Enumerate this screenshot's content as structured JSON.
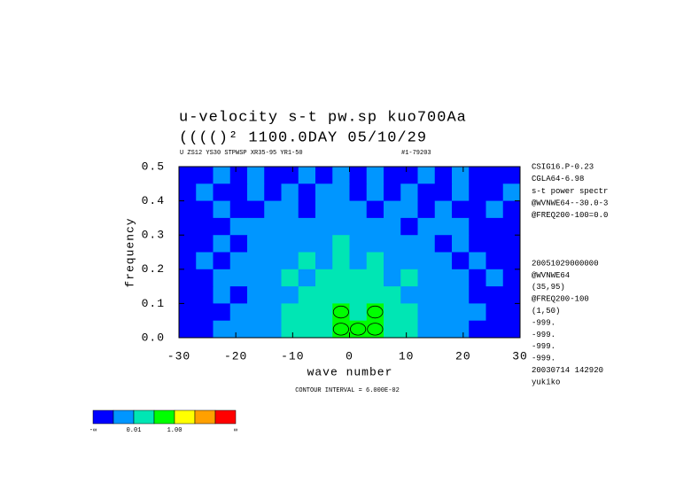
{
  "chart_data": {
    "type": "contour",
    "title": "u-velocity s-t pw.sp  kuo700Aa",
    "subtitle": "(((()²      1100.0DAY 05/10/29",
    "header_left": "U ZS12 YS30 STPWSP XR35-95 YR1-50",
    "header_right": "#1-79203",
    "xlabel": "wave number",
    "ylabel": "frequency",
    "note": "CONTOUR INTERVAL = 6.000E-02",
    "info_top": [
      "CSIG16.P-0.23",
      "CGLA64-6.98",
      "s-t power spectr",
      "@WVNWE64--30.0-3",
      "@FREQ200-100=0.0"
    ],
    "info_bottom": [
      "20051029000000",
      "@WVNWE64",
      "(35,95)",
      "@FREQ200-100",
      "(1,50)",
      "-999.",
      "-999.",
      "-999.",
      "-999.",
      "20030714 142920",
      "yukiko"
    ],
    "xlim": [
      -30,
      30
    ],
    "ylim": [
      0,
      0.5
    ],
    "xticks": [
      -30,
      -20,
      -10,
      0,
      10,
      20,
      30
    ],
    "yticks": [
      {
        "value": 0,
        "label": "0.0"
      },
      {
        "value": 0.1,
        "label": "0.1"
      },
      {
        "value": 0.2,
        "label": "0.2"
      },
      {
        "value": 0.3,
        "label": "0.3"
      },
      {
        "value": 0.4,
        "label": "0.4"
      },
      {
        "value": 0.5,
        "label": "0.5"
      }
    ],
    "x": [
      -28.5,
      -25.5,
      -22.5,
      -19.5,
      -16.5,
      -13.5,
      -10.5,
      -7.5,
      -4.5,
      -1.5,
      1.5,
      4.5,
      7.5,
      10.5,
      13.5,
      16.5,
      19.5,
      22.5,
      25.5,
      28.5
    ],
    "y": [
      0.475,
      0.425,
      0.375,
      0.325,
      0.275,
      0.225,
      0.175,
      0.125,
      0.075,
      0.025
    ],
    "z": [
      [
        0.0005,
        0.0005,
        0.005,
        0.0005,
        0.005,
        0.0005,
        0.0005,
        0.005,
        0.0005,
        0.005,
        0.0005,
        0.005,
        0.0005,
        0.0005,
        0.005,
        0.0005,
        0.005,
        0.0005,
        0.0005,
        0.0005
      ],
      [
        0.0005,
        0.005,
        0.0005,
        0.0005,
        0.005,
        0.0005,
        0.005,
        0.0005,
        0.005,
        0.005,
        0.0005,
        0.005,
        0.0005,
        0.005,
        0.0005,
        0.0005,
        0.005,
        0.0005,
        0.0005,
        0.005
      ],
      [
        0.0005,
        0.0005,
        0.005,
        0.0005,
        0.0005,
        0.005,
        0.005,
        0.0005,
        0.005,
        0.005,
        0.005,
        0.0005,
        0.005,
        0.005,
        0.0005,
        0.005,
        0.0005,
        0.0005,
        0.005,
        0.0005
      ],
      [
        0.0005,
        0.0005,
        0.0005,
        0.005,
        0.005,
        0.005,
        0.005,
        0.005,
        0.005,
        0.005,
        0.005,
        0.005,
        0.005,
        0.0005,
        0.005,
        0.005,
        0.005,
        0.0005,
        0.0005,
        0.0005
      ],
      [
        0.0005,
        0.0005,
        0.005,
        0.0005,
        0.005,
        0.005,
        0.005,
        0.005,
        0.005,
        0.05,
        0.005,
        0.005,
        0.005,
        0.005,
        0.005,
        0.0005,
        0.005,
        0.0005,
        0.0005,
        0.0005
      ],
      [
        0.0005,
        0.005,
        0.0005,
        0.005,
        0.005,
        0.005,
        0.005,
        0.05,
        0.005,
        0.05,
        0.005,
        0.05,
        0.005,
        0.005,
        0.005,
        0.005,
        0.0005,
        0.005,
        0.0005,
        0.0005
      ],
      [
        0.0005,
        0.0005,
        0.005,
        0.005,
        0.005,
        0.005,
        0.05,
        0.005,
        0.05,
        0.05,
        0.05,
        0.05,
        0.005,
        0.05,
        0.005,
        0.005,
        0.005,
        0.0005,
        0.005,
        0.0005
      ],
      [
        0.0005,
        0.0005,
        0.005,
        0.0005,
        0.005,
        0.005,
        0.005,
        0.05,
        0.05,
        0.05,
        0.05,
        0.05,
        0.05,
        0.005,
        0.005,
        0.005,
        0.005,
        0.0005,
        0.0005,
        0.0005
      ],
      [
        0.0005,
        0.0005,
        0.0005,
        0.005,
        0.005,
        0.005,
        0.05,
        0.05,
        0.05,
        0.5,
        0.05,
        0.5,
        0.05,
        0.05,
        0.005,
        0.005,
        0.005,
        0.005,
        0.0005,
        0.0005
      ],
      [
        0.0005,
        0.0005,
        0.005,
        0.005,
        0.005,
        0.005,
        0.05,
        0.05,
        0.05,
        0.5,
        0.5,
        0.5,
        0.05,
        0.05,
        0.005,
        0.005,
        0.005,
        0.0005,
        0.0005,
        0.0005
      ]
    ],
    "colorbar": {
      "colors": [
        "#0000ff",
        "#0096ff",
        "#00e6b4",
        "#00ff00",
        "#ffff00",
        "#ffa000",
        "#ff0000"
      ],
      "levels": [
        0.001,
        0.01,
        0.1,
        1,
        10,
        100
      ],
      "ticks": [
        {
          "value": 0.01,
          "label": "0.01"
        },
        {
          "value": 1,
          "label": "1.00"
        }
      ],
      "ends": [
        "-∞",
        "∞"
      ]
    },
    "contour_level": 0.3
  }
}
